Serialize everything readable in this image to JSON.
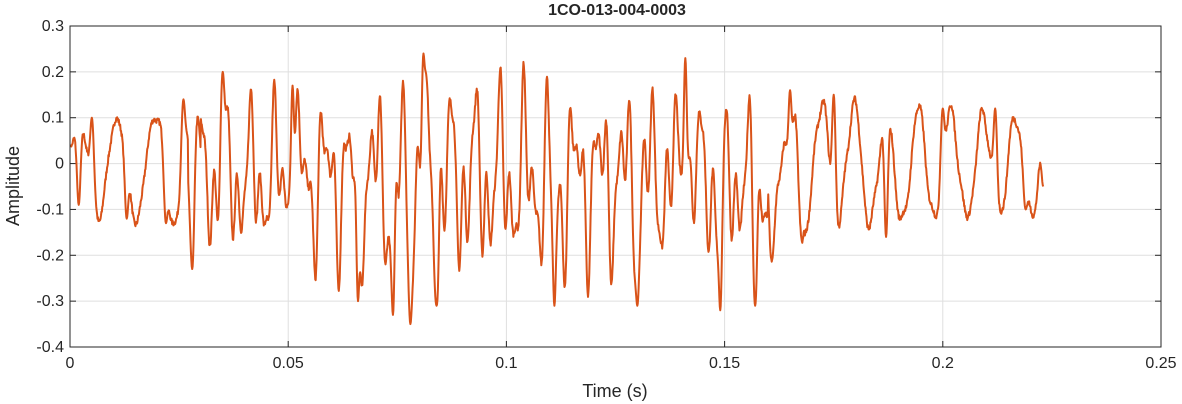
{
  "chart_data": {
    "type": "line",
    "title": "1CO-013-004-0003",
    "xlabel": "Time (s)",
    "ylabel": "Amplitude",
    "xlim": [
      0,
      0.25
    ],
    "ylim": [
      -0.4,
      0.3
    ],
    "xticks": [
      0,
      0.05,
      0.1,
      0.15,
      0.2,
      0.25
    ],
    "xtick_labels": [
      "0",
      "0.05",
      "0.1",
      "0.15",
      "0.2",
      "0.25"
    ],
    "yticks": [
      -0.4,
      -0.3,
      -0.2,
      -0.1,
      0,
      0.1,
      0.2,
      0.3
    ],
    "ytick_labels": [
      "-0.4",
      "-0.3",
      "-0.2",
      "-0.1",
      "0",
      "0.1",
      "0.2",
      "0.3"
    ],
    "grid": true,
    "legend": "none",
    "line_color": "#D95319",
    "series": [
      {
        "x_start": 0,
        "x_end": 0.223,
        "samples": 2230,
        "description_points": [
          {
            "x": 0.0,
            "y": 0.04
          },
          {
            "x": 0.002,
            "y": -0.09
          },
          {
            "x": 0.005,
            "y": 0.1
          },
          {
            "x": 0.013,
            "y": -0.12
          },
          {
            "x": 0.022,
            "y": -0.13
          },
          {
            "x": 0.026,
            "y": 0.14
          },
          {
            "x": 0.028,
            "y": -0.23
          },
          {
            "x": 0.035,
            "y": 0.2
          },
          {
            "x": 0.051,
            "y": 0.17
          },
          {
            "x": 0.066,
            "y": -0.3
          },
          {
            "x": 0.074,
            "y": -0.33
          },
          {
            "x": 0.078,
            "y": -0.35
          },
          {
            "x": 0.081,
            "y": 0.24
          },
          {
            "x": 0.084,
            "y": -0.31
          },
          {
            "x": 0.111,
            "y": -0.31
          },
          {
            "x": 0.13,
            "y": -0.31
          },
          {
            "x": 0.141,
            "y": 0.23
          },
          {
            "x": 0.149,
            "y": -0.32
          },
          {
            "x": 0.157,
            "y": -0.31
          },
          {
            "x": 0.165,
            "y": 0.16
          },
          {
            "x": 0.175,
            "y": 0.15
          },
          {
            "x": 0.187,
            "y": -0.16
          },
          {
            "x": 0.2,
            "y": 0.12
          },
          {
            "x": 0.212,
            "y": 0.12
          },
          {
            "x": 0.219,
            "y": -0.1
          },
          {
            "x": 0.223,
            "y": -0.05
          }
        ]
      }
    ]
  }
}
